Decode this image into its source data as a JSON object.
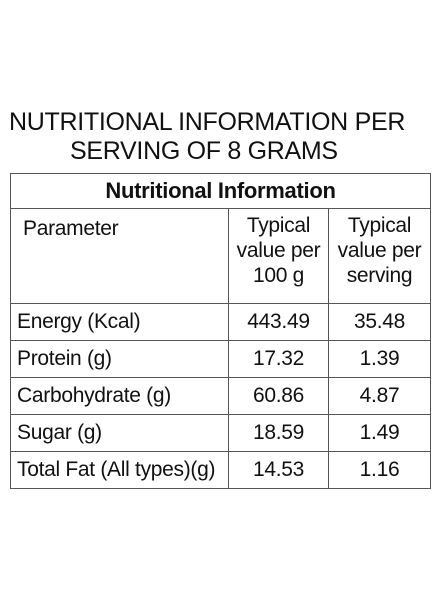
{
  "heading": {
    "line1": "NUTRITIONAL INFORMATION PER",
    "line2": "SERVING OF 8 GRAMS"
  },
  "table": {
    "title": "Nutritional Information",
    "headers": {
      "parameter": "Parameter",
      "per100": [
        "Typical",
        "value per",
        "100 g"
      ],
      "perServing": [
        "Typical",
        "value per",
        "serving"
      ]
    },
    "rows": [
      {
        "name": "Energy (Kcal)",
        "per100": "443.49",
        "perServing": "35.48"
      },
      {
        "name": "Protein (g)",
        "per100": "17.32",
        "perServing": "1.39"
      },
      {
        "name": "Carbohydrate (g)",
        "per100": "60.86",
        "perServing": "4.87"
      },
      {
        "name": "Sugar (g)",
        "per100": "18.59",
        "perServing": "1.49"
      },
      {
        "name": "Total Fat (All types)(g)",
        "per100": "14.53",
        "perServing": "1.16"
      }
    ]
  }
}
